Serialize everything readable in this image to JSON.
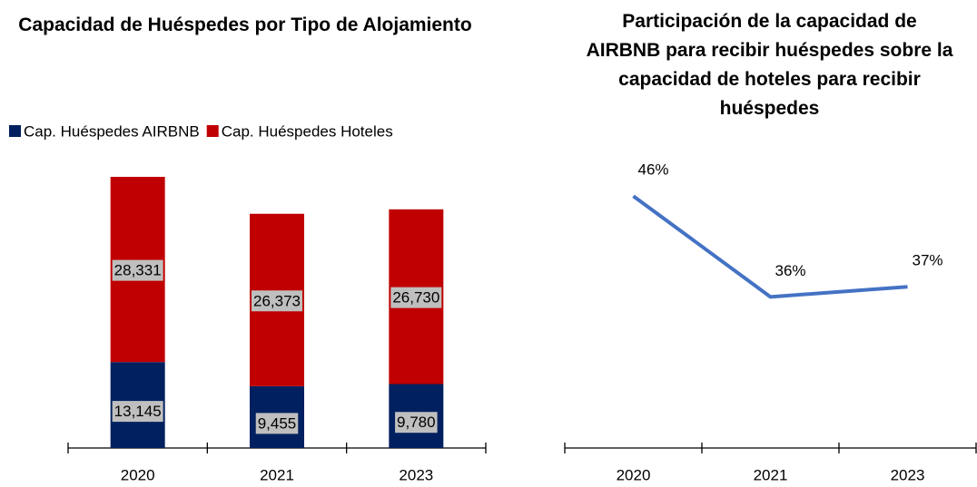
{
  "chart_data": [
    {
      "type": "stacked_bar",
      "title": "Capacidad de Huéspedes por Tipo de Alojamiento",
      "categories": [
        "2020",
        "2021",
        "2023"
      ],
      "series": [
        {
          "name": "Cap. Huéspedes AIRBNB",
          "color": "#002060",
          "values": [
            13145,
            9455,
            9780
          ],
          "value_labels": [
            "13,145",
            "9,455",
            "9,780"
          ]
        },
        {
          "name": "Cap. Huéspedes Hoteles",
          "color": "#c00000",
          "values": [
            28331,
            26373,
            26730
          ],
          "value_labels": [
            "28,331",
            "26,373",
            "26,730"
          ]
        }
      ],
      "ylim": [
        0,
        48000
      ],
      "legend": "top"
    },
    {
      "type": "line",
      "title": "Participación de la capacidad de AIRBNB para recibir huéspedes sobre la capacidad de hoteles para recibir huéspedes",
      "categories": [
        "2020",
        "2021",
        "2023"
      ],
      "values": [
        46,
        36,
        37
      ],
      "value_labels": [
        "46%",
        "36%",
        "37%"
      ],
      "color": "#4472c4",
      "ylim": [
        21,
        48
      ]
    }
  ]
}
